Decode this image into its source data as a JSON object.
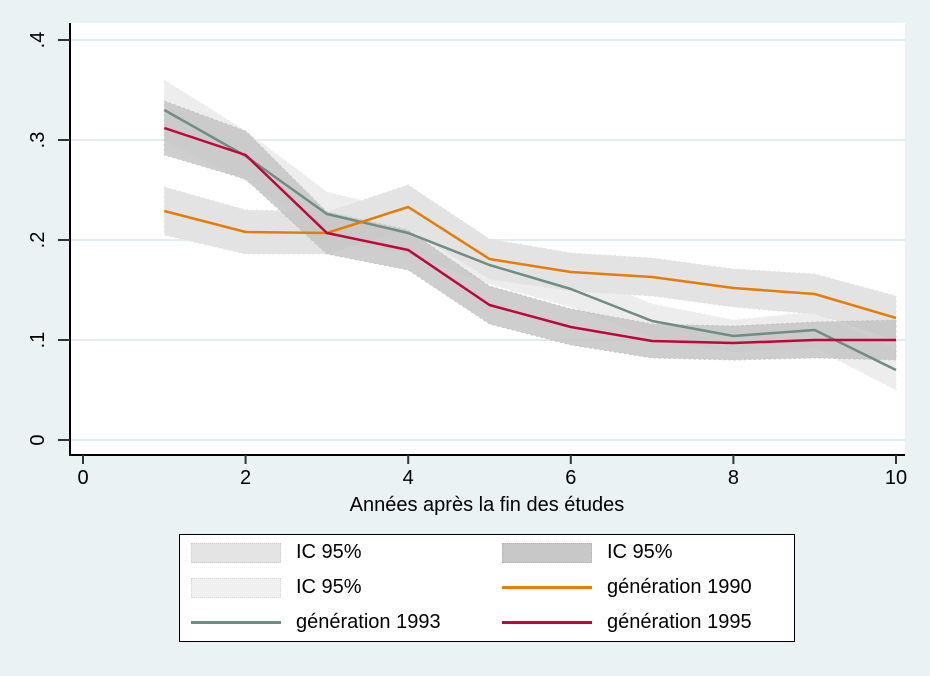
{
  "chart_data": {
    "type": "line",
    "title": "",
    "xlabel": "Années après la fin des études",
    "ylabel": "",
    "xlim": [
      0,
      10.15
    ],
    "ylim": [
      0,
      0.42
    ],
    "grid": "horizontal",
    "x_ticks": [
      0,
      2,
      4,
      6,
      8,
      10
    ],
    "x_tick_labels": [
      "0",
      "2",
      "4",
      "6",
      "8",
      "10"
    ],
    "y_ticks": [
      0,
      0.1,
      0.2,
      0.3,
      0.4
    ],
    "y_tick_labels": [
      "0",
      ".1",
      ".2",
      ".3",
      ".4"
    ],
    "x": [
      1,
      2,
      3,
      4,
      5,
      6,
      7,
      8,
      9,
      10
    ],
    "series": [
      {
        "name": "génération 1990",
        "color": "#e57e00",
        "band_color": "#e3e3e3",
        "band_opacity": 1,
        "values": [
          0.229,
          0.208,
          0.207,
          0.233,
          0.181,
          0.168,
          0.163,
          0.152,
          0.146,
          0.122
        ],
        "ci_lo": [
          0.205,
          0.186,
          0.186,
          0.211,
          0.161,
          0.149,
          0.144,
          0.133,
          0.126,
          0.1
        ],
        "ci_hi": [
          0.253,
          0.23,
          0.228,
          0.255,
          0.201,
          0.187,
          0.182,
          0.171,
          0.166,
          0.144
        ]
      },
      {
        "name": "génération 1993",
        "color": "#6e8e84",
        "band_color": "#ededed",
        "band_opacity": 1,
        "values": [
          0.33,
          0.284,
          0.226,
          0.207,
          0.175,
          0.151,
          0.119,
          0.104,
          0.11,
          0.07
        ],
        "ci_lo": [
          0.3,
          0.259,
          0.204,
          0.186,
          0.156,
          0.133,
          0.102,
          0.088,
          0.092,
          0.05
        ],
        "ci_hi": [
          0.36,
          0.309,
          0.248,
          0.228,
          0.194,
          0.169,
          0.136,
          0.12,
          0.128,
          0.09
        ]
      },
      {
        "name": "génération 1995",
        "color": "#c10538",
        "band_color": "#c2c2c2",
        "band_opacity": 0.8,
        "values": [
          0.312,
          0.285,
          0.207,
          0.19,
          0.135,
          0.113,
          0.099,
          0.097,
          0.1,
          0.1
        ],
        "ci_lo": [
          0.285,
          0.261,
          0.186,
          0.17,
          0.116,
          0.095,
          0.082,
          0.08,
          0.082,
          0.08
        ],
        "ci_hi": [
          0.339,
          0.309,
          0.228,
          0.21,
          0.154,
          0.131,
          0.116,
          0.114,
          0.118,
          0.12
        ]
      }
    ],
    "legend": {
      "position": "bottom",
      "entries": [
        {
          "type": "area",
          "label": "IC 95%",
          "color": "#e4e4e4"
        },
        {
          "type": "area",
          "label": "IC 95%",
          "color": "#c8c8c8"
        },
        {
          "type": "area",
          "label": "IC 95%",
          "color": "#f0f0f0"
        },
        {
          "type": "line",
          "label": "génération 1990",
          "color": "#e57e00"
        },
        {
          "type": "line",
          "label": "génération 1993",
          "color": "#6e8e84"
        },
        {
          "type": "line",
          "label": "génération 1995",
          "color": "#c10538"
        }
      ]
    },
    "colors": {
      "background": "#eaf2f3",
      "plot_background": "#ffffff",
      "gridline": "#e3edf0",
      "axis": "#000000",
      "tick": "#333333"
    }
  }
}
